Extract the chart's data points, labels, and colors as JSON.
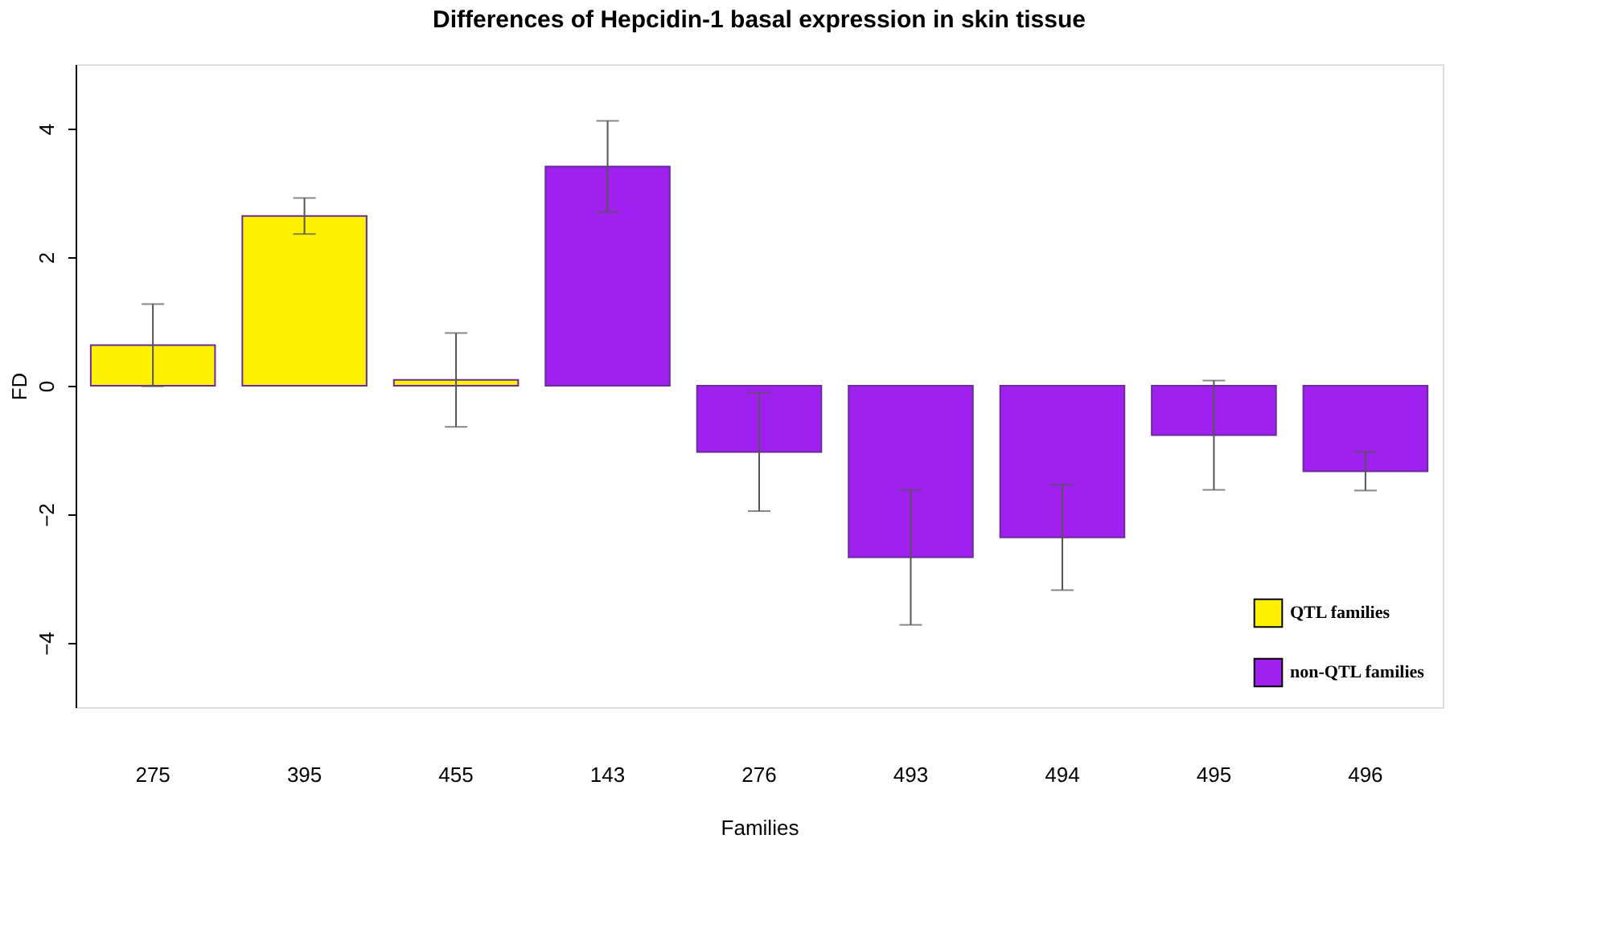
{
  "chart_data": {
    "type": "bar",
    "title": "Differences of Hepcidin-1 basal expression in skin tissue",
    "xlabel": "Families",
    "ylabel": "FD",
    "categories": [
      "275",
      "395",
      "455",
      "143",
      "276",
      "493",
      "494",
      "495",
      "496"
    ],
    "series": [
      {
        "name": "QTL families",
        "color": "#fff200",
        "values": [
          0.63,
          2.64,
          0.09,
          null,
          null,
          null,
          null,
          null,
          null
        ],
        "errors": [
          0.64,
          0.28,
          0.73,
          null,
          null,
          null,
          null,
          null,
          null
        ]
      },
      {
        "name": "non-QTL families",
        "color": "#a020f0",
        "values": [
          null,
          null,
          null,
          3.41,
          -1.03,
          -2.67,
          -2.36,
          -0.77,
          -1.33
        ],
        "errors": [
          null,
          null,
          null,
          0.71,
          0.92,
          1.05,
          0.82,
          0.85,
          0.3
        ]
      }
    ],
    "ylim": [
      -5,
      5
    ],
    "yticks": [
      -4,
      -2,
      0,
      2,
      4
    ],
    "grid": false,
    "legend": "bottom right"
  }
}
